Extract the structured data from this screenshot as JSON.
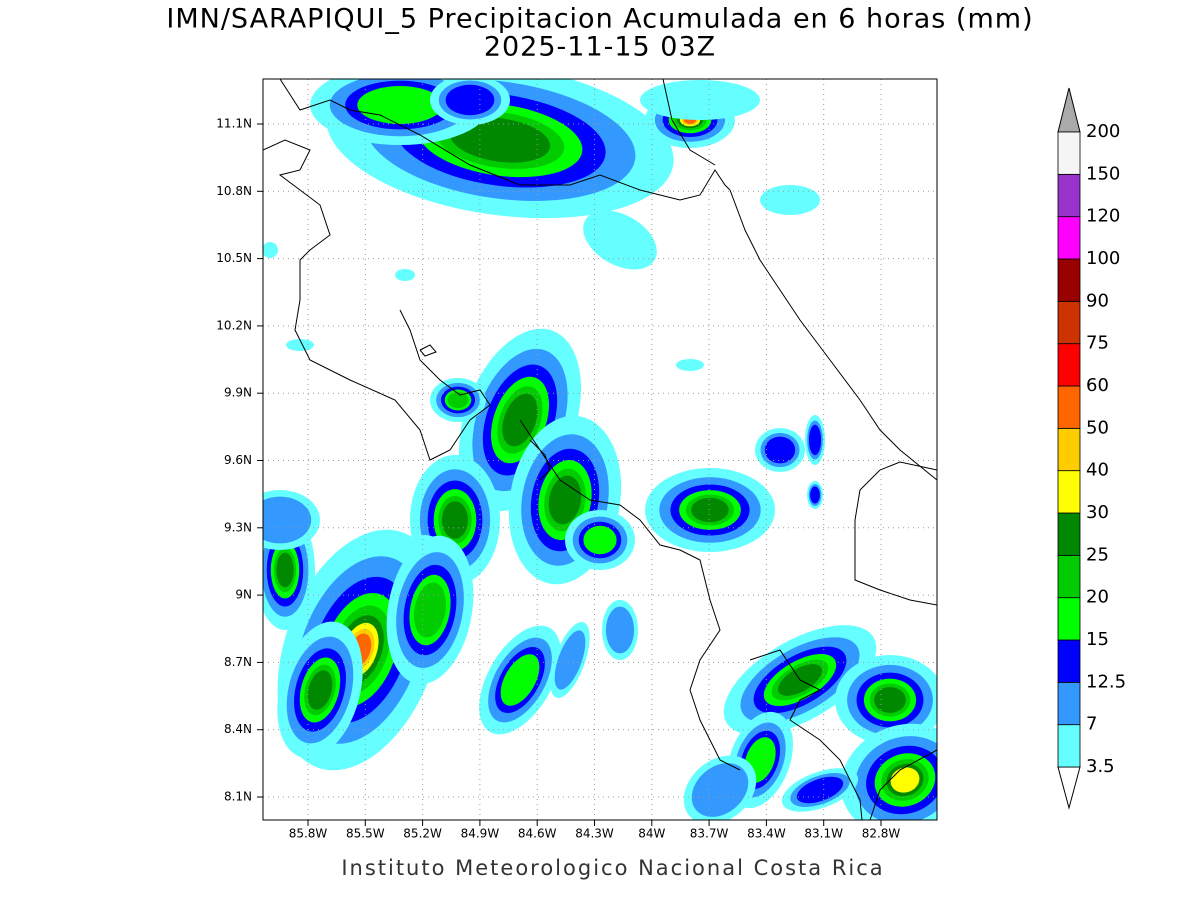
{
  "title": "IMN/SARAPIQUI_5 Precipitacion Acumulada en 6 horas (mm)",
  "subtitle": "2025-11-15 03Z",
  "map": {
    "lat_labels": [
      "11.1N",
      "10.8N",
      "10.5N",
      "10.2N",
      "9.9N",
      "9.6N",
      "9.3N",
      "9N",
      "8.7N",
      "8.4N",
      "8.1N"
    ],
    "lon_labels": [
      "85.8W",
      "85.5W",
      "85.2W",
      "84.9W",
      "84.6W",
      "84.3W",
      "84W",
      "83.7W",
      "83.4W",
      "83.1W",
      "82.8W"
    ]
  },
  "colorbar": {
    "levels": [
      3.5,
      7,
      12.5,
      15,
      20,
      25,
      30,
      40,
      50,
      60,
      75,
      90,
      100,
      120,
      150,
      200
    ],
    "colors": [
      "#66ffff",
      "#3399ff",
      "#0000ff",
      "#00ff00",
      "#00cc00",
      "#008800",
      "#ffff00",
      "#ffcc00",
      "#ff6600",
      "#ff0000",
      "#cc3300",
      "#990000",
      "#ff00ff",
      "#9933cc",
      "#f5f5f5"
    ]
  },
  "footer": "Instituto Meteorologico Nacional Costa Rica"
}
